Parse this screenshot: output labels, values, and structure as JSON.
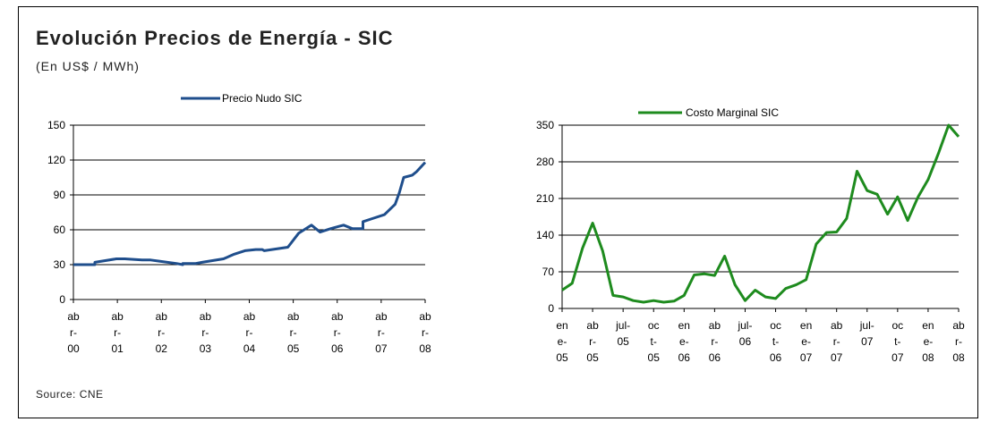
{
  "page": {
    "title": "Evolución Precios de Energía - SIC",
    "subtitle": "(En US$ / MWh)",
    "source": "Source: CNE"
  },
  "chart_data": [
    {
      "type": "line",
      "series": [
        {
          "name": "Precio Nudo SIC",
          "color": "#1F4E8C",
          "points": [
            [
              0.0,
              30
            ],
            [
              0.5,
              30
            ],
            [
              0.5,
              32
            ],
            [
              1.0,
              35
            ],
            [
              1.2,
              35
            ],
            [
              1.6,
              34
            ],
            [
              1.8,
              34
            ],
            [
              2.0,
              33
            ],
            [
              2.4,
              31
            ],
            [
              2.55,
              30
            ],
            [
              2.55,
              31
            ],
            [
              2.85,
              31
            ],
            [
              3.0,
              32
            ],
            [
              3.5,
              35
            ],
            [
              3.75,
              39
            ],
            [
              4.0,
              42
            ],
            [
              4.25,
              43
            ],
            [
              4.4,
              43
            ],
            [
              4.45,
              42
            ],
            [
              5.0,
              45
            ],
            [
              5.25,
              57
            ],
            [
              5.55,
              64
            ],
            [
              5.75,
              58
            ],
            [
              6.0,
              61
            ],
            [
              6.2,
              63
            ],
            [
              6.3,
              64
            ],
            [
              6.5,
              61
            ],
            [
              6.75,
              61
            ],
            [
              6.75,
              67
            ],
            [
              7.0,
              70
            ],
            [
              7.25,
              73
            ],
            [
              7.5,
              82
            ],
            [
              7.6,
              92
            ],
            [
              7.7,
              105
            ],
            [
              7.9,
              107
            ],
            [
              8.0,
              110
            ],
            [
              8.2,
              118
            ]
          ]
        }
      ],
      "x_ticks": [
        "ab\nr-\n00",
        "ab\nr-\n01",
        "ab\nr-\n02",
        "ab\nr-\n03",
        "ab\nr-\n04",
        "ab\nr-\n05",
        "ab\nr-\n06",
        "ab\nr-\n07",
        "ab\nr-\n08"
      ],
      "x_range": [
        0,
        8.2
      ],
      "y_ticks": [
        "0",
        "30",
        "60",
        "90",
        "120",
        "150"
      ],
      "ylim": [
        0,
        150
      ],
      "grid": true,
      "legend": "top-center"
    },
    {
      "type": "line",
      "series": [
        {
          "name": "Costo Marginal SIC",
          "color": "#1E8B1E",
          "points": [
            [
              0.0,
              35
            ],
            [
              0.33,
              48
            ],
            [
              0.67,
              115
            ],
            [
              1.0,
              163
            ],
            [
              1.33,
              110
            ],
            [
              1.67,
              25
            ],
            [
              2.0,
              22
            ],
            [
              2.33,
              15
            ],
            [
              2.67,
              12
            ],
            [
              3.0,
              15
            ],
            [
              3.33,
              12
            ],
            [
              3.67,
              14
            ],
            [
              4.0,
              25
            ],
            [
              4.33,
              64
            ],
            [
              4.67,
              66
            ],
            [
              5.0,
              63
            ],
            [
              5.33,
              100
            ],
            [
              5.67,
              45
            ],
            [
              6.0,
              15
            ],
            [
              6.33,
              35
            ],
            [
              6.67,
              22
            ],
            [
              7.0,
              19
            ],
            [
              7.33,
              38
            ],
            [
              7.67,
              45
            ],
            [
              8.0,
              55
            ],
            [
              8.33,
              123
            ],
            [
              8.67,
              145
            ],
            [
              9.0,
              146
            ],
            [
              9.33,
              172
            ],
            [
              9.67,
              262
            ],
            [
              10.0,
              225
            ],
            [
              10.33,
              218
            ],
            [
              10.67,
              180
            ],
            [
              11.0,
              213
            ],
            [
              11.33,
              168
            ],
            [
              11.67,
              213
            ],
            [
              12.0,
              246
            ],
            [
              12.33,
              295
            ],
            [
              12.67,
              350
            ],
            [
              13.0,
              328
            ]
          ]
        }
      ],
      "x_ticks": [
        "en\ne-\n05",
        "ab\nr-\n05",
        "jul-\n05",
        "oc\nt-\n05",
        "en\ne-\n06",
        "ab\nr-\n06",
        "jul-\n06",
        "oc\nt-\n06",
        "en\ne-\n07",
        "ab\nr-\n07",
        "jul-\n07",
        "oc\nt-\n07",
        "en\ne-\n08",
        "ab\nr-\n08"
      ],
      "x_range": [
        0,
        13
      ],
      "y_ticks": [
        "0",
        "70",
        "140",
        "210",
        "280",
        "350"
      ],
      "ylim": [
        0,
        350
      ],
      "grid": true,
      "legend": "top-center"
    }
  ]
}
